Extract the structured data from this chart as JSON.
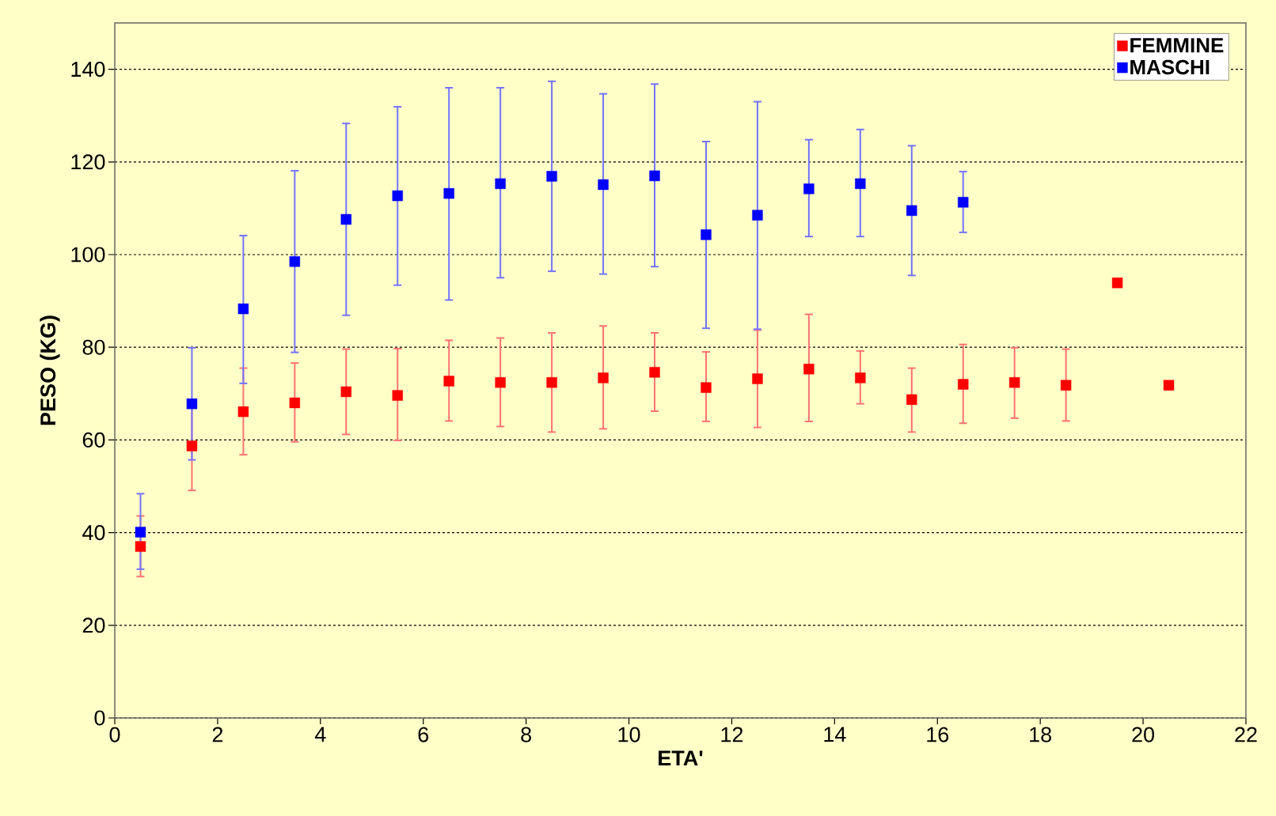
{
  "chart_data": {
    "type": "scatter",
    "xlabel": "ETA'",
    "ylabel": "PESO (KG)",
    "xlim": [
      0,
      22
    ],
    "xticks": [
      0,
      2,
      4,
      6,
      8,
      10,
      12,
      14,
      16,
      18,
      20,
      22
    ],
    "ylim": [
      0,
      150
    ],
    "yticks": [
      0,
      20,
      40,
      60,
      80,
      100,
      120,
      140
    ],
    "grid": "y",
    "legend": "top right",
    "marker": "square",
    "series": [
      {
        "name": "FEMMINE",
        "color": "#ff0000",
        "x": [
          0.5,
          1.5,
          2.5,
          3.5,
          4.5,
          5.5,
          6.5,
          7.5,
          8.5,
          9.5,
          10.5,
          11.5,
          12.5,
          13.5,
          14.5,
          15.5,
          16.5,
          17.5,
          18.5,
          19.5,
          20.5
        ],
        "values": [
          37,
          58.7,
          66.1,
          68.0,
          70.4,
          69.6,
          72.7,
          72.4,
          72.4,
          73.4,
          74.6,
          71.3,
          73.2,
          75.3,
          73.4,
          68.7,
          72.0,
          72.4,
          71.8,
          93.9,
          71.8
        ],
        "errors": [
          [
            30.5,
            43.6
          ],
          [
            49.1,
            68.3
          ],
          [
            56.8,
            75.5
          ],
          [
            59.6,
            76.6
          ],
          [
            61.2,
            79.6
          ],
          [
            59.9,
            79.7
          ],
          [
            64.1,
            81.5
          ],
          [
            62.9,
            82.0
          ],
          [
            61.7,
            83.1
          ],
          [
            62.4,
            84.6
          ],
          [
            66.2,
            83.1
          ],
          [
            64.0,
            79.0
          ],
          [
            62.7,
            83.7
          ],
          [
            64.0,
            87.1
          ],
          [
            67.8,
            79.2
          ],
          [
            61.7,
            75.5
          ],
          [
            63.6,
            80.6
          ],
          [
            64.7,
            79.9
          ],
          [
            64.1,
            79.6
          ],
          null,
          null
        ]
      },
      {
        "name": "MASCHI",
        "color": "#0000ff",
        "x": [
          0.5,
          1.5,
          2.5,
          3.5,
          4.5,
          5.5,
          6.5,
          7.5,
          8.5,
          9.5,
          10.5,
          11.5,
          12.5,
          13.5,
          14.5,
          15.5,
          16.5
        ],
        "values": [
          40.1,
          67.8,
          88.3,
          98.5,
          107.6,
          112.7,
          113.2,
          115.3,
          116.9,
          115.1,
          117.0,
          104.3,
          108.5,
          114.2,
          115.3,
          109.5,
          111.3
        ],
        "errors": [
          [
            32.1,
            48.4
          ],
          [
            55.7,
            79.9
          ],
          [
            72.2,
            104.1
          ],
          [
            78.9,
            118.1
          ],
          [
            86.9,
            128.3
          ],
          [
            93.4,
            131.9
          ],
          [
            90.2,
            136.0
          ],
          [
            95.0,
            136.0
          ],
          [
            96.4,
            137.4
          ],
          [
            95.8,
            134.7
          ],
          [
            97.4,
            136.8
          ],
          [
            84.1,
            124.4
          ],
          [
            83.9,
            133.0
          ],
          [
            103.9,
            124.8
          ],
          [
            103.9,
            127.0
          ],
          [
            95.5,
            123.5
          ],
          [
            104.8,
            117.9
          ]
        ]
      }
    ]
  }
}
